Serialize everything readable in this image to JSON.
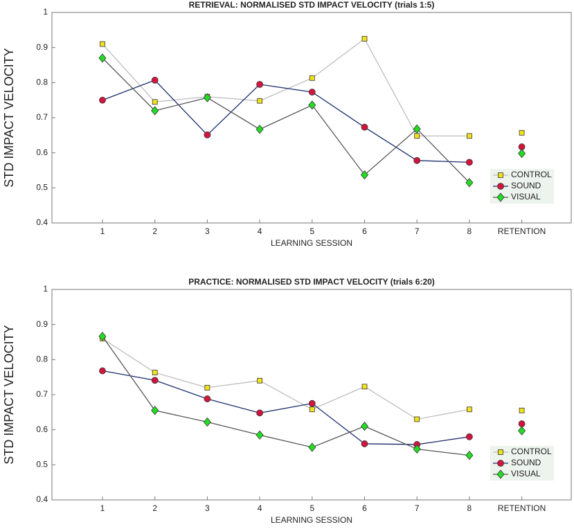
{
  "chart_data": [
    {
      "type": "line",
      "title": "RETRIEVAL: NORMALISED STD IMPACT VELOCITY (trials 1:5)",
      "x_label": "LEARNING SESSION",
      "y_label": "STD IMPACT VELOCITY",
      "categories": [
        "1",
        "2",
        "3",
        "4",
        "5",
        "6",
        "7",
        "8",
        "RETENTION"
      ],
      "ylim": [
        0.4,
        1
      ],
      "yticks": [
        0.4,
        0.5,
        0.6,
        0.7,
        0.8,
        0.9,
        1
      ],
      "line_break_before_last": true,
      "legend": "lower right",
      "series": [
        {
          "name": "CONTROL",
          "color": "#bdbdbd",
          "marker_color": "#f2e21c",
          "marker": "square",
          "values": [
            0.91,
            0.745,
            0.76,
            0.748,
            0.813,
            0.925,
            0.648,
            0.648,
            0.657
          ]
        },
        {
          "name": "SOUND",
          "color": "#1a2c6b",
          "marker_color": "#d4143c",
          "marker": "circle",
          "values": [
            0.75,
            0.807,
            0.651,
            0.795,
            0.773,
            0.673,
            0.578,
            0.573,
            0.617
          ]
        },
        {
          "name": "VISUAL",
          "color": "#555555",
          "marker_color": "#22dd22",
          "marker": "diamond",
          "values": [
            0.87,
            0.72,
            0.757,
            0.667,
            0.736,
            0.537,
            0.668,
            0.515,
            0.598
          ]
        }
      ]
    },
    {
      "type": "line",
      "title": "PRACTICE: NORMALISED STD IMPACT VELOCITY (trials 6:20)",
      "x_label": "LEARNING SESSION",
      "y_label": "STD IMPACT VELOCITY",
      "categories": [
        "1",
        "2",
        "3",
        "4",
        "5",
        "6",
        "7",
        "8",
        "RETENTION"
      ],
      "ylim": [
        0.4,
        1
      ],
      "yticks": [
        0.4,
        0.5,
        0.6,
        0.7,
        0.8,
        0.9,
        1
      ],
      "line_break_before_last": true,
      "legend": "lower right",
      "series": [
        {
          "name": "CONTROL",
          "color": "#bdbdbd",
          "marker_color": "#f2e21c",
          "marker": "square",
          "values": [
            0.86,
            0.763,
            0.72,
            0.74,
            0.658,
            0.723,
            0.63,
            0.658,
            0.655
          ]
        },
        {
          "name": "SOUND",
          "color": "#1a2c6b",
          "marker_color": "#d4143c",
          "marker": "circle",
          "values": [
            0.768,
            0.741,
            0.688,
            0.648,
            0.675,
            0.56,
            0.558,
            0.58,
            0.617
          ]
        },
        {
          "name": "VISUAL",
          "color": "#555555",
          "marker_color": "#22dd22",
          "marker": "diamond",
          "values": [
            0.866,
            0.655,
            0.622,
            0.585,
            0.55,
            0.61,
            0.545,
            0.527,
            0.597
          ]
        }
      ]
    }
  ]
}
